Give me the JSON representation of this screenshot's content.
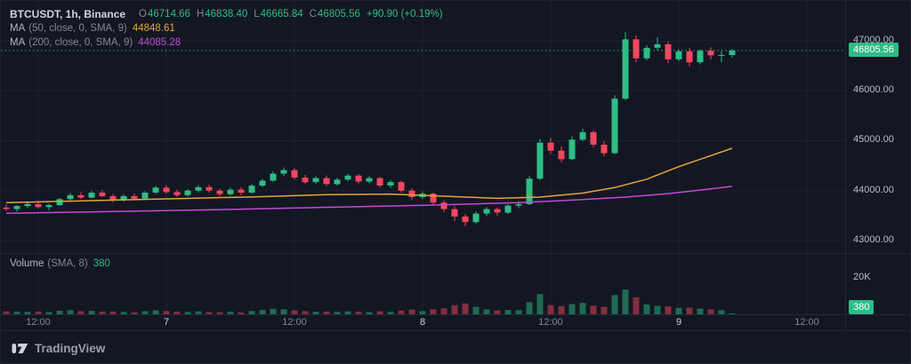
{
  "colors": {
    "bg": "#131722",
    "up": "#2ebd85",
    "down": "#f6465d",
    "orange": "#e8a33d",
    "purple": "#c24ad6",
    "grid": "#1c2230",
    "text": "#d1d4dc",
    "muted": "#81858f",
    "axis_text": "#b7bcc9",
    "panel_border": "#242938",
    "brand_text": "#9b9fa8"
  },
  "header": {
    "symbol_title": "BTCUSDT, 1h, Binance",
    "ohlc": {
      "o_label": "O",
      "o": "46714.66",
      "h_label": "H",
      "h": "46838.40",
      "l_label": "L",
      "l": "46665.84",
      "c_label": "C",
      "c": "46805.56",
      "change": "+90.90 (+0.19%)"
    },
    "ma50": {
      "label": "MA",
      "params": "(50, close, 0, SMA, 9)",
      "value": "44848.61"
    },
    "ma200": {
      "label": "MA",
      "params": "(200, close, 0, SMA, 9)",
      "value": "44085.28"
    }
  },
  "volume_legend": {
    "label": "Volume",
    "params": "(SMA, 8)",
    "value": "380"
  },
  "price_axis": {
    "ticks": [
      "47000.00",
      "46000.00",
      "45000.00",
      "44000.00",
      "43000.00"
    ],
    "last_price_label": "46805.56"
  },
  "volume_axis": {
    "tick": "20K",
    "badge": "380"
  },
  "footer": {
    "brand": "TradingView"
  },
  "chart_data": {
    "type": "candlestick",
    "title": "BTCUSDT 1h Binance",
    "last_price": 46805.56,
    "price_scale": {
      "min": 42750,
      "max": 47800,
      "ticks": [
        47000,
        46000,
        45000,
        44000,
        43000
      ]
    },
    "volume_scale": {
      "max": 33000,
      "tick": 20000
    },
    "time_ticks": [
      {
        "i": 3,
        "label": "12:00",
        "major": false
      },
      {
        "i": 15,
        "label": "7",
        "major": true
      },
      {
        "i": 27,
        "label": "12:00",
        "major": false
      },
      {
        "i": 39,
        "label": "8",
        "major": true
      },
      {
        "i": 51,
        "label": "12:00",
        "major": false
      },
      {
        "i": 63,
        "label": "9",
        "major": true
      },
      {
        "i": 75,
        "label": "12:00",
        "major": false
      }
    ],
    "candles": [
      [
        43660,
        43730,
        43600,
        43630,
        1600
      ],
      [
        43630,
        43710,
        43580,
        43690,
        1400
      ],
      [
        43690,
        43770,
        43650,
        43730,
        1300
      ],
      [
        43730,
        43790,
        43640,
        43670,
        1500
      ],
      [
        43670,
        43740,
        43610,
        43710,
        1200
      ],
      [
        43710,
        43860,
        43690,
        43830,
        2000
      ],
      [
        43830,
        43950,
        43800,
        43910,
        2300
      ],
      [
        43910,
        43970,
        43830,
        43860,
        1700
      ],
      [
        43860,
        44000,
        43840,
        43960,
        1900
      ],
      [
        43960,
        44010,
        43870,
        43890,
        1400
      ],
      [
        43890,
        43930,
        43770,
        43810,
        1500
      ],
      [
        43810,
        43920,
        43780,
        43890,
        1300
      ],
      [
        43890,
        43940,
        43810,
        43840,
        1100
      ],
      [
        43840,
        43990,
        43820,
        43960,
        1700
      ],
      [
        43960,
        44100,
        43930,
        44060,
        2200
      ],
      [
        44060,
        44110,
        43940,
        43970,
        1800
      ],
      [
        43970,
        44020,
        43870,
        43910,
        1400
      ],
      [
        43910,
        44030,
        43880,
        44000,
        1300
      ],
      [
        44000,
        44110,
        43960,
        44070,
        1600
      ],
      [
        44070,
        44120,
        43960,
        44000,
        1200
      ],
      [
        44000,
        44040,
        43890,
        43930,
        1100
      ],
      [
        43930,
        44060,
        43900,
        44020,
        1400
      ],
      [
        44020,
        44070,
        43910,
        43960,
        1000
      ],
      [
        43960,
        44130,
        43940,
        44100,
        1800
      ],
      [
        44100,
        44240,
        44070,
        44200,
        2400
      ],
      [
        44200,
        44390,
        44170,
        44340,
        3000
      ],
      [
        44340,
        44460,
        44290,
        44410,
        2700
      ],
      [
        44410,
        44450,
        44220,
        44260,
        2200
      ],
      [
        44260,
        44320,
        44130,
        44170,
        1700
      ],
      [
        44170,
        44290,
        44140,
        44250,
        1400
      ],
      [
        44250,
        44300,
        44090,
        44130,
        1500
      ],
      [
        44130,
        44260,
        44100,
        44220,
        1300
      ],
      [
        44220,
        44340,
        44190,
        44300,
        1600
      ],
      [
        44300,
        44330,
        44140,
        44180,
        1400
      ],
      [
        44180,
        44290,
        44150,
        44250,
        1200
      ],
      [
        44250,
        44280,
        44060,
        44100,
        1600
      ],
      [
        44100,
        44210,
        44050,
        44170,
        1300
      ],
      [
        44170,
        44200,
        43960,
        44000,
        2000
      ],
      [
        44000,
        44050,
        43810,
        43870,
        2500
      ],
      [
        43870,
        43980,
        43830,
        43940,
        1700
      ],
      [
        43940,
        43960,
        43710,
        43760,
        2700
      ],
      [
        43760,
        43810,
        43570,
        43630,
        3300
      ],
      [
        43630,
        43690,
        43390,
        43480,
        5000
      ],
      [
        43480,
        43530,
        43290,
        43370,
        5900
      ],
      [
        43370,
        43580,
        43340,
        43540,
        4100
      ],
      [
        43540,
        43670,
        43490,
        43630,
        2700
      ],
      [
        43630,
        43660,
        43500,
        43560,
        2100
      ],
      [
        43560,
        43730,
        43530,
        43700,
        2400
      ],
      [
        43700,
        43790,
        43650,
        43730,
        2300
      ],
      [
        43730,
        44290,
        43710,
        44240,
        6600
      ],
      [
        44240,
        45030,
        44210,
        44960,
        11000
      ],
      [
        44960,
        45060,
        44730,
        44800,
        5100
      ],
      [
        44800,
        44890,
        44570,
        44630,
        4500
      ],
      [
        44630,
        45090,
        44610,
        45020,
        5600
      ],
      [
        45020,
        45240,
        44990,
        45170,
        6200
      ],
      [
        45170,
        45210,
        44860,
        44920,
        4700
      ],
      [
        44920,
        44990,
        44690,
        44750,
        4100
      ],
      [
        44750,
        45910,
        44730,
        45840,
        10500
      ],
      [
        45840,
        47170,
        45810,
        47030,
        13500
      ],
      [
        47030,
        47110,
        46570,
        46650,
        9200
      ],
      [
        46650,
        46910,
        46610,
        46860,
        5400
      ],
      [
        46860,
        47070,
        46810,
        46930,
        4600
      ],
      [
        46930,
        46990,
        46550,
        46630,
        4300
      ],
      [
        46630,
        46830,
        46590,
        46790,
        3500
      ],
      [
        46790,
        46860,
        46490,
        46570,
        3700
      ],
      [
        46570,
        46830,
        46530,
        46800,
        3100
      ],
      [
        46800,
        46870,
        46630,
        46710,
        2700
      ],
      [
        46710,
        46790,
        46570,
        46715,
        2300
      ],
      [
        46714.66,
        46838.4,
        46665.84,
        46805.56,
        380
      ]
    ],
    "ma50": {
      "period": 50,
      "last": 44848.61,
      "points": [
        [
          0,
          43760
        ],
        [
          8,
          43800
        ],
        [
          16,
          43840
        ],
        [
          24,
          43880
        ],
        [
          30,
          43920
        ],
        [
          36,
          43930
        ],
        [
          42,
          43880
        ],
        [
          46,
          43845
        ],
        [
          50,
          43870
        ],
        [
          54,
          43950
        ],
        [
          57,
          44060
        ],
        [
          60,
          44230
        ],
        [
          63,
          44480
        ],
        [
          66,
          44700
        ],
        [
          68,
          44848.61
        ]
      ]
    },
    "ma200": {
      "period": 200,
      "last": 44085.28,
      "points": [
        [
          0,
          43545
        ],
        [
          10,
          43580
        ],
        [
          20,
          43620
        ],
        [
          30,
          43665
        ],
        [
          40,
          43710
        ],
        [
          48,
          43760
        ],
        [
          54,
          43820
        ],
        [
          58,
          43870
        ],
        [
          62,
          43940
        ],
        [
          65,
          44010
        ],
        [
          68,
          44085.28
        ]
      ]
    }
  }
}
